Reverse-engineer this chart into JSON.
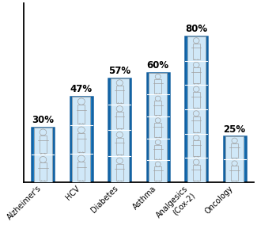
{
  "categories": [
    "Alzheimer's",
    "HCV",
    "Diabetes",
    "Asthma",
    "Analgesics\n(Cox-2)",
    "Oncology"
  ],
  "values": [
    30,
    47,
    57,
    60,
    80,
    25
  ],
  "n_persons": [
    2,
    3,
    4,
    5,
    6,
    2
  ],
  "bar_color": "#1A7BC4",
  "bar_edge_color": "#1260A0",
  "person_fill": "#D0E8F8",
  "person_edge": "#A0A0A0",
  "divider_color": "#FFFFFF",
  "figure_bg": "#FFFFFF",
  "axes_bg": "#FFFFFF",
  "label_fontsize": 7.0,
  "pct_fontsize": 8.5,
  "bar_width": 0.58,
  "ylim": [
    0,
    92
  ],
  "figure_size": [
    3.25,
    2.89
  ],
  "dpi": 100
}
